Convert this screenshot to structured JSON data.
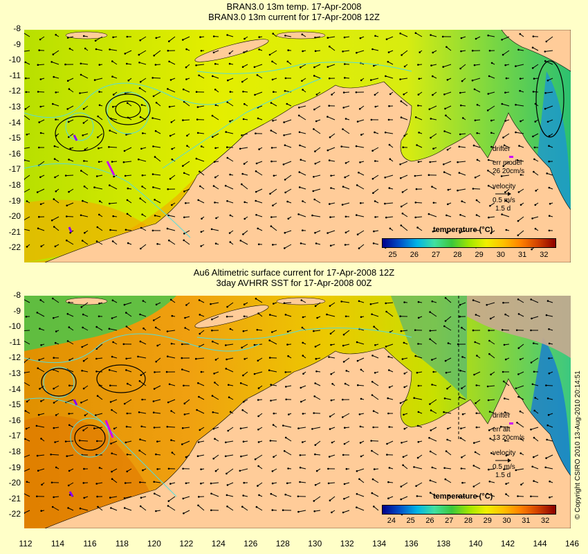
{
  "panels": [
    {
      "title1": "BRAN3.0 13m temp. 17-Apr-2008",
      "title2": "BRAN3.0 13m current for 17-Apr-2008 12Z",
      "legend": {
        "drifter_label": "drifter",
        "err_label": "err model",
        "err_values": "26 20cm/s",
        "velocity_label": "velocity",
        "velocity_value": "0.5 m/s",
        "velocity_days": "1.5 d"
      },
      "colorbar": {
        "title": "temperature (°C)",
        "labels": [
          "25",
          "26",
          "27",
          "28",
          "29",
          "30",
          "31",
          "32"
        ]
      }
    },
    {
      "title1": "Au6 Altimetric surface current for 17-Apr-2008 12Z",
      "title2": "3day AVHRR SST for 17-Apr-2008 00Z",
      "legend": {
        "drifter_label": "drifter",
        "err_label": "err alt",
        "err_values": "13 20cm/s",
        "velocity_label": "velocity",
        "velocity_value": "0.5 m/s",
        "velocity_days": "1.5 d"
      },
      "colorbar": {
        "title": "temperature (°C)",
        "labels": [
          "24",
          "25",
          "26",
          "27",
          "28",
          "29",
          "30",
          "31",
          "32"
        ]
      }
    }
  ],
  "y_ticks": [
    "-8",
    "-9",
    "-10",
    "-11",
    "-12",
    "-13",
    "-14",
    "-15",
    "-16",
    "-17",
    "-18",
    "-19",
    "-20",
    "-21",
    "-22"
  ],
  "x_ticks": [
    "112",
    "114",
    "116",
    "118",
    "120",
    "122",
    "124",
    "126",
    "128",
    "130",
    "132",
    "134",
    "136",
    "138",
    "140",
    "142",
    "144",
    "146"
  ],
  "copyright": "© Copyright CSIRO 2010   13-Aug-2010 20:14:51",
  "colors": {
    "land": "#ffcc99",
    "background": "#ffffc8",
    "contour": "#55dddd",
    "drifter": "#cc00ff",
    "colorbar": [
      "#00008b",
      "#0050c8",
      "#00b4e6",
      "#40e0a0",
      "#3cc83c",
      "#a0e600",
      "#f0f000",
      "#ffc000",
      "#ff8000",
      "#d04000",
      "#8b0000"
    ]
  }
}
